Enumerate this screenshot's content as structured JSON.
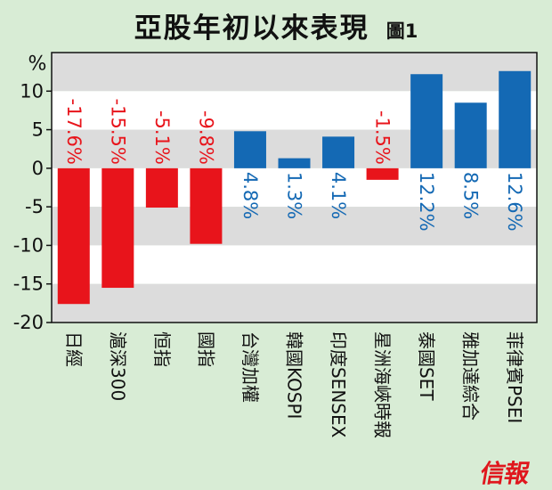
{
  "title": "亞股年初以來表現",
  "figure_label": "圖1",
  "logo_text": "信報",
  "chart_data": {
    "type": "bar",
    "title": "亞股年初以來表現",
    "ylabel": "%",
    "ylim": [
      -20,
      15
    ],
    "yticks": [
      -20,
      -15,
      -10,
      -5,
      0,
      5,
      10
    ],
    "categories": [
      "日經",
      "滬深300",
      "恒指",
      "國指",
      "台灣加權",
      "韓國KOSPI",
      "印度SENSEX",
      "星洲海峽時報",
      "泰國SET",
      "雅加達綜合",
      "菲律賓PSEI"
    ],
    "values": [
      -17.6,
      -15.5,
      -5.1,
      -9.8,
      4.8,
      1.3,
      4.1,
      -1.5,
      12.2,
      8.5,
      12.6
    ],
    "value_labels": [
      "-17.6%",
      "-15.5%",
      "-5.1%",
      "-9.8%",
      "4.8%",
      "1.3%",
      "4.1%",
      "-1.5%",
      "12.2%",
      "8.5%",
      "12.6%"
    ],
    "colors": {
      "negative": "#e8141b",
      "positive": "#1469b4"
    },
    "band_colors": [
      "#dcdcdc",
      "#ffffff"
    ],
    "grid": false
  }
}
